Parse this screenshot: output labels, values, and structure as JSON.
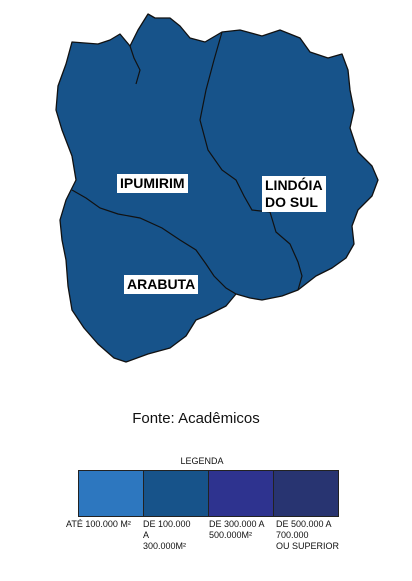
{
  "map": {
    "fill_color": "#17538a",
    "border_color": "#111111",
    "regions": [
      {
        "name": "IPUMIRIM"
      },
      {
        "name": "LINDÓIA\nDO SUL"
      },
      {
        "name": "ARABUTA"
      }
    ]
  },
  "source": "Fonte: Acadêmicos",
  "legend": {
    "title": "LEGENDA",
    "items": [
      {
        "label": "ATÉ 100.000 M²",
        "color": "#2d77bf"
      },
      {
        "label": "DE 100.000\nA\n300.000M²",
        "color": "#17538a"
      },
      {
        "label": "DE 300.000 A\n500.000M²",
        "color": "#2e338f"
      },
      {
        "label": "DE 500.000 A\n700.000\nOU SUPERIOR",
        "color": "#283471"
      }
    ]
  }
}
